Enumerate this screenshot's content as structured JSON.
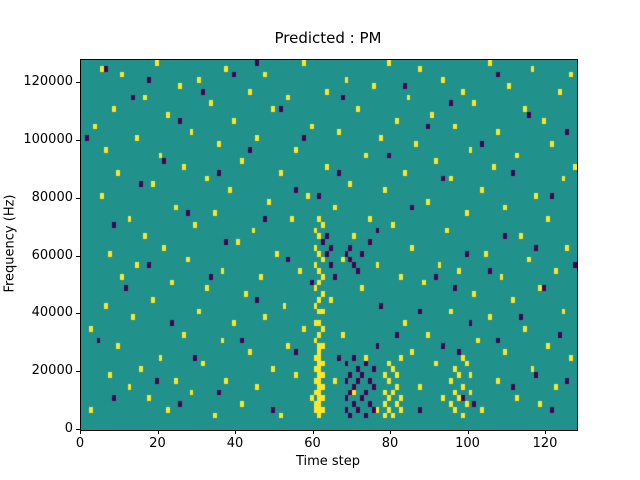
{
  "figure": {
    "title": "Predicted : PM",
    "xlabel": "Time step",
    "ylabel": "Frequency (Hz)"
  },
  "chart_data": {
    "type": "heatmap",
    "title": "Predicted : PM",
    "xlabel": "Time step",
    "ylabel": "Frequency (Hz)",
    "x_range": [
      0,
      128
    ],
    "y_range": [
      0,
      128000
    ],
    "grid": {
      "cols": 128,
      "rows": 64,
      "hz_per_row": 2000
    },
    "xticks": [
      0,
      20,
      40,
      60,
      80,
      100,
      120
    ],
    "xtick_labels": [
      "0",
      "20",
      "40",
      "60",
      "80",
      "100",
      "120"
    ],
    "yticks": [
      0,
      20000,
      40000,
      60000,
      80000,
      100000,
      120000
    ],
    "ytick_labels": [
      "0",
      "20000",
      "40000",
      "60000",
      "80000",
      "100000",
      "120000"
    ],
    "legend": "none",
    "colors": {
      "background": "#21918c",
      "high": "#fde725",
      "low": "#440154"
    },
    "cells_high": [
      [
        2,
        3
      ],
      [
        2,
        17
      ],
      [
        3,
        52
      ],
      [
        5,
        40
      ],
      [
        5,
        62
      ],
      [
        6,
        21
      ],
      [
        6,
        48
      ],
      [
        7,
        9
      ],
      [
        7,
        30
      ],
      [
        8,
        55
      ],
      [
        9,
        14
      ],
      [
        9,
        44
      ],
      [
        10,
        26
      ],
      [
        10,
        61
      ],
      [
        12,
        7
      ],
      [
        12,
        36
      ],
      [
        13,
        19
      ],
      [
        14,
        50
      ],
      [
        14,
        28
      ],
      [
        15,
        10
      ],
      [
        16,
        33
      ],
      [
        16,
        57
      ],
      [
        17,
        5
      ],
      [
        18,
        42
      ],
      [
        18,
        22
      ],
      [
        19,
        63
      ],
      [
        20,
        12
      ],
      [
        20,
        47
      ],
      [
        21,
        31
      ],
      [
        22,
        3
      ],
      [
        22,
        54
      ],
      [
        23,
        25
      ],
      [
        24,
        38
      ],
      [
        24,
        8
      ],
      [
        25,
        59
      ],
      [
        26,
        16
      ],
      [
        26,
        45
      ],
      [
        27,
        29
      ],
      [
        28,
        6
      ],
      [
        28,
        51
      ],
      [
        29,
        35
      ],
      [
        30,
        20
      ],
      [
        30,
        60
      ],
      [
        31,
        11
      ],
      [
        32,
        43
      ],
      [
        32,
        24
      ],
      [
        33,
        56
      ],
      [
        34,
        2
      ],
      [
        34,
        37
      ],
      [
        35,
        49
      ],
      [
        36,
        15
      ],
      [
        36,
        27
      ],
      [
        37,
        62
      ],
      [
        37,
        8
      ],
      [
        38,
        41
      ],
      [
        39,
        18
      ],
      [
        39,
        53
      ],
      [
        40,
        32
      ],
      [
        41,
        4
      ],
      [
        41,
        46
      ],
      [
        42,
        23
      ],
      [
        43,
        58
      ],
      [
        43,
        13
      ],
      [
        44,
        34
      ],
      [
        45,
        7
      ],
      [
        45,
        50
      ],
      [
        46,
        26
      ],
      [
        47,
        61
      ],
      [
        47,
        19
      ],
      [
        48,
        39
      ],
      [
        49,
        10
      ],
      [
        49,
        55
      ],
      [
        50,
        30
      ],
      [
        51,
        2
      ],
      [
        51,
        44
      ],
      [
        52,
        21
      ],
      [
        53,
        57
      ],
      [
        53,
        14
      ],
      [
        54,
        36
      ],
      [
        55,
        9
      ],
      [
        55,
        48
      ],
      [
        56,
        27
      ],
      [
        57,
        63
      ],
      [
        57,
        17
      ],
      [
        58,
        40
      ],
      [
        59,
        5
      ],
      [
        59,
        52
      ],
      [
        60,
        3
      ],
      [
        60,
        4
      ],
      [
        60,
        6
      ],
      [
        60,
        8
      ],
      [
        60,
        10
      ],
      [
        60,
        12
      ],
      [
        60,
        15
      ],
      [
        60,
        18
      ],
      [
        60,
        21
      ],
      [
        60,
        24
      ],
      [
        60,
        28
      ],
      [
        60,
        31
      ],
      [
        60,
        34
      ],
      [
        61,
        2
      ],
      [
        61,
        3
      ],
      [
        61,
        4
      ],
      [
        61,
        5
      ],
      [
        61,
        6
      ],
      [
        61,
        7
      ],
      [
        61,
        8
      ],
      [
        61,
        9
      ],
      [
        61,
        10
      ],
      [
        61,
        11
      ],
      [
        61,
        12
      ],
      [
        61,
        13
      ],
      [
        61,
        14
      ],
      [
        61,
        16
      ],
      [
        61,
        18
      ],
      [
        61,
        20
      ],
      [
        61,
        22
      ],
      [
        61,
        25
      ],
      [
        61,
        27
      ],
      [
        61,
        30
      ],
      [
        61,
        33
      ],
      [
        61,
        36
      ],
      [
        62,
        3
      ],
      [
        62,
        5
      ],
      [
        62,
        7
      ],
      [
        62,
        9
      ],
      [
        62,
        11
      ],
      [
        62,
        14
      ],
      [
        62,
        17
      ],
      [
        62,
        20
      ],
      [
        62,
        23
      ],
      [
        62,
        26
      ],
      [
        62,
        29
      ],
      [
        62,
        35
      ],
      [
        63,
        45
      ],
      [
        63,
        58
      ],
      [
        64,
        22
      ],
      [
        65,
        38
      ],
      [
        65,
        8
      ],
      [
        66,
        51
      ],
      [
        67,
        16
      ],
      [
        67,
        29
      ],
      [
        68,
        60
      ],
      [
        69,
        42
      ],
      [
        70,
        6
      ],
      [
        70,
        33
      ],
      [
        71,
        55
      ],
      [
        72,
        24
      ],
      [
        73,
        47
      ],
      [
        73,
        12
      ],
      [
        74,
        36
      ],
      [
        75,
        59
      ],
      [
        76,
        3
      ],
      [
        76,
        28
      ],
      [
        77,
        50
      ],
      [
        78,
        2
      ],
      [
        78,
        4
      ],
      [
        78,
        6
      ],
      [
        78,
        9
      ],
      [
        78,
        41
      ],
      [
        79,
        3
      ],
      [
        79,
        5
      ],
      [
        79,
        8
      ],
      [
        79,
        11
      ],
      [
        79,
        63
      ],
      [
        80,
        2
      ],
      [
        80,
        6
      ],
      [
        80,
        10
      ],
      [
        80,
        35
      ],
      [
        81,
        4
      ],
      [
        81,
        7
      ],
      [
        81,
        9
      ],
      [
        81,
        53
      ],
      [
        82,
        3
      ],
      [
        82,
        5
      ],
      [
        82,
        12
      ],
      [
        82,
        26
      ],
      [
        83,
        44
      ],
      [
        83,
        18
      ],
      [
        84,
        57
      ],
      [
        85,
        13
      ],
      [
        85,
        31
      ],
      [
        86,
        49
      ],
      [
        87,
        7
      ],
      [
        87,
        62
      ],
      [
        88,
        25
      ],
      [
        89,
        39
      ],
      [
        89,
        16
      ],
      [
        90,
        54
      ],
      [
        91,
        11
      ],
      [
        91,
        46
      ],
      [
        92,
        28
      ],
      [
        93,
        5
      ],
      [
        93,
        60
      ],
      [
        94,
        34
      ],
      [
        95,
        4
      ],
      [
        95,
        8
      ],
      [
        95,
        20
      ],
      [
        95,
        43
      ],
      [
        96,
        3
      ],
      [
        96,
        6
      ],
      [
        96,
        10
      ],
      [
        96,
        52
      ],
      [
        97,
        5
      ],
      [
        97,
        9
      ],
      [
        97,
        27
      ],
      [
        98,
        2
      ],
      [
        98,
        7
      ],
      [
        98,
        12
      ],
      [
        98,
        58
      ],
      [
        99,
        4
      ],
      [
        99,
        11
      ],
      [
        99,
        37
      ],
      [
        100,
        6
      ],
      [
        100,
        9
      ],
      [
        100,
        48
      ],
      [
        101,
        23
      ],
      [
        101,
        56
      ],
      [
        102,
        15
      ],
      [
        103,
        41
      ],
      [
        103,
        3
      ],
      [
        104,
        30
      ],
      [
        105,
        63
      ],
      [
        105,
        19
      ],
      [
        106,
        45
      ],
      [
        107,
        8
      ],
      [
        107,
        51
      ],
      [
        108,
        26
      ],
      [
        109,
        38
      ],
      [
        109,
        13
      ],
      [
        110,
        59
      ],
      [
        111,
        22
      ],
      [
        112,
        5
      ],
      [
        112,
        47
      ],
      [
        113,
        33
      ],
      [
        114,
        17
      ],
      [
        114,
        55
      ],
      [
        115,
        29
      ],
      [
        116,
        62
      ],
      [
        116,
        10
      ],
      [
        117,
        40
      ],
      [
        118,
        24
      ],
      [
        118,
        4
      ],
      [
        119,
        53
      ],
      [
        120,
        14
      ],
      [
        120,
        36
      ],
      [
        121,
        49
      ],
      [
        122,
        7
      ],
      [
        122,
        27
      ],
      [
        123,
        58
      ],
      [
        124,
        20
      ],
      [
        124,
        43
      ],
      [
        125,
        31
      ],
      [
        126,
        61
      ],
      [
        126,
        12
      ],
      [
        127,
        45
      ]
    ],
    "cells_low": [
      [
        1,
        50
      ],
      [
        4,
        15
      ],
      [
        6,
        62
      ],
      [
        8,
        35
      ],
      [
        8,
        5
      ],
      [
        11,
        24
      ],
      [
        13,
        57
      ],
      [
        15,
        42
      ],
      [
        17,
        28
      ],
      [
        17,
        60
      ],
      [
        19,
        8
      ],
      [
        21,
        46
      ],
      [
        23,
        18
      ],
      [
        25,
        53
      ],
      [
        25,
        4
      ],
      [
        27,
        37
      ],
      [
        29,
        12
      ],
      [
        31,
        58
      ],
      [
        33,
        26
      ],
      [
        35,
        6
      ],
      [
        35,
        44
      ],
      [
        37,
        32
      ],
      [
        39,
        61
      ],
      [
        41,
        15
      ],
      [
        43,
        48
      ],
      [
        45,
        22
      ],
      [
        45,
        63
      ],
      [
        47,
        36
      ],
      [
        49,
        3
      ],
      [
        51,
        55
      ],
      [
        53,
        29
      ],
      [
        55,
        41
      ],
      [
        55,
        13
      ],
      [
        57,
        50
      ],
      [
        59,
        25
      ],
      [
        61,
        40
      ],
      [
        62,
        32
      ],
      [
        63,
        30
      ],
      [
        63,
        33
      ],
      [
        64,
        28
      ],
      [
        64,
        31
      ],
      [
        65,
        26
      ],
      [
        66,
        44
      ],
      [
        66,
        12
      ],
      [
        67,
        57
      ],
      [
        68,
        3
      ],
      [
        68,
        5
      ],
      [
        68,
        8
      ],
      [
        68,
        11
      ],
      [
        68,
        30
      ],
      [
        69,
        2
      ],
      [
        69,
        6
      ],
      [
        69,
        9
      ],
      [
        69,
        29
      ],
      [
        69,
        31
      ],
      [
        70,
        4
      ],
      [
        70,
        7
      ],
      [
        70,
        12
      ],
      [
        70,
        28
      ],
      [
        71,
        3
      ],
      [
        71,
        8
      ],
      [
        71,
        10
      ],
      [
        71,
        27
      ],
      [
        72,
        5
      ],
      [
        72,
        9
      ],
      [
        72,
        30
      ],
      [
        73,
        2
      ],
      [
        73,
        6
      ],
      [
        73,
        11
      ],
      [
        74,
        4
      ],
      [
        74,
        8
      ],
      [
        74,
        32
      ],
      [
        75,
        3
      ],
      [
        75,
        7
      ],
      [
        75,
        10
      ],
      [
        76,
        14
      ],
      [
        76,
        34
      ],
      [
        77,
        21
      ],
      [
        79,
        47
      ],
      [
        81,
        16
      ],
      [
        83,
        59
      ],
      [
        85,
        38
      ],
      [
        87,
        20
      ],
      [
        87,
        3
      ],
      [
        89,
        52
      ],
      [
        91,
        26
      ],
      [
        93,
        14
      ],
      [
        93,
        43
      ],
      [
        95,
        56
      ],
      [
        96,
        24
      ],
      [
        97,
        13
      ],
      [
        98,
        5
      ],
      [
        99,
        30
      ],
      [
        100,
        18
      ],
      [
        101,
        4
      ],
      [
        103,
        49
      ],
      [
        105,
        27
      ],
      [
        107,
        15
      ],
      [
        107,
        61
      ],
      [
        109,
        33
      ],
      [
        111,
        7
      ],
      [
        111,
        44
      ],
      [
        113,
        19
      ],
      [
        115,
        54
      ],
      [
        117,
        9
      ],
      [
        117,
        31
      ],
      [
        119,
        24
      ],
      [
        121,
        40
      ],
      [
        121,
        3
      ],
      [
        123,
        16
      ],
      [
        125,
        51
      ],
      [
        125,
        8
      ],
      [
        127,
        28
      ]
    ]
  }
}
